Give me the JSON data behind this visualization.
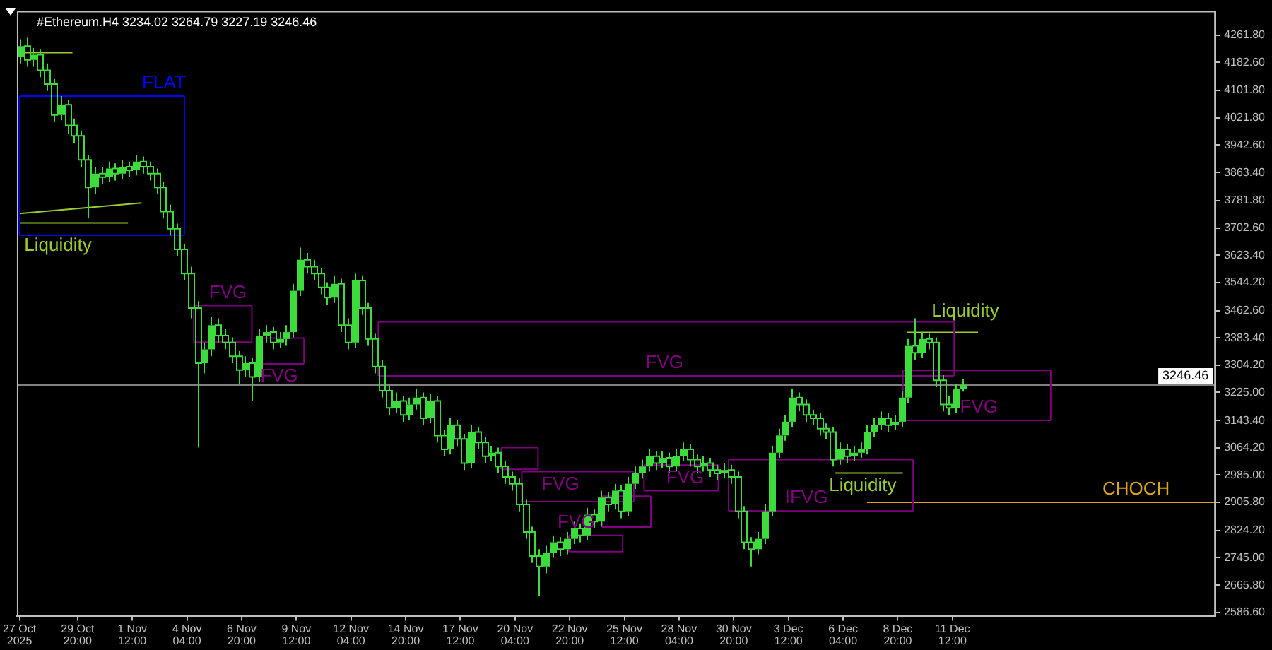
{
  "chart_data": {
    "type": "candlestick",
    "title": "#Ethereum.H4 3234.02 3264.79 3227.19 3246.46",
    "color": "#3ddc3d",
    "x": [
      "2025-10-27T00:00",
      "2025-10-27T08:00",
      "2025-10-27T16:00",
      "2025-10-28T00:00",
      "2025-10-28T08:00",
      "2025-10-28T16:00",
      "2025-10-29T00:00",
      "2025-10-29T08:00",
      "2025-10-29T16:00",
      "2025-10-30T00:00",
      "2025-10-30T08:00",
      "2025-10-30T16:00",
      "2025-10-31T00:00",
      "2025-10-31T08:00",
      "2025-10-31T16:00",
      "2025-11-01T00:00",
      "2025-11-01T08:00",
      "2025-11-01T16:00",
      "2025-11-02T00:00",
      "2025-11-02T08:00",
      "2025-11-02T16:00",
      "2025-11-03T00:00",
      "2025-11-03T08:00",
      "2025-11-03T16:00",
      "2025-11-04T00:00",
      "2025-11-04T08:00",
      "2025-11-04T16:00",
      "2025-11-05T00:00",
      "2025-11-05T08:00",
      "2025-11-05T16:00",
      "2025-11-06T00:00",
      "2025-11-06T08:00",
      "2025-11-06T16:00",
      "2025-11-07T00:00",
      "2025-11-07T08:00",
      "2025-11-07T16:00",
      "2025-11-08T00:00",
      "2025-11-08T08:00",
      "2025-11-08T16:00",
      "2025-11-09T00:00",
      "2025-11-09T08:00",
      "2025-11-09T16:00",
      "2025-11-10T00:00",
      "2025-11-10T08:00",
      "2025-11-10T16:00",
      "2025-11-11T00:00",
      "2025-11-11T08:00",
      "2025-11-11T16:00",
      "2025-11-12T00:00",
      "2025-11-12T08:00",
      "2025-11-12T16:00",
      "2025-11-13T00:00",
      "2025-11-13T08:00",
      "2025-11-13T16:00",
      "2025-11-14T00:00",
      "2025-11-14T08:00",
      "2025-11-14T16:00",
      "2025-11-15T00:00",
      "2025-11-15T08:00",
      "2025-11-15T16:00",
      "2025-11-16T00:00",
      "2025-11-16T08:00",
      "2025-11-16T16:00",
      "2025-11-17T00:00",
      "2025-11-17T08:00",
      "2025-11-17T16:00",
      "2025-11-18T00:00",
      "2025-11-18T08:00",
      "2025-11-18T16:00",
      "2025-11-19T00:00",
      "2025-11-19T08:00",
      "2025-11-19T16:00",
      "2025-11-20T00:00",
      "2025-11-20T08:00",
      "2025-11-20T16:00",
      "2025-11-21T00:00",
      "2025-11-21T08:00",
      "2025-11-21T16:00",
      "2025-11-22T00:00",
      "2025-11-22T08:00",
      "2025-11-22T16:00",
      "2025-11-23T00:00",
      "2025-11-23T08:00",
      "2025-11-23T16:00",
      "2025-11-24T00:00",
      "2025-11-24T08:00",
      "2025-11-24T16:00",
      "2025-11-25T00:00",
      "2025-11-25T08:00",
      "2025-11-25T16:00",
      "2025-11-26T00:00",
      "2025-11-26T08:00",
      "2025-11-26T16:00",
      "2025-11-27T00:00",
      "2025-11-27T08:00",
      "2025-11-27T16:00",
      "2025-11-28T00:00",
      "2025-11-28T08:00",
      "2025-11-28T16:00",
      "2025-11-29T00:00",
      "2025-11-29T08:00",
      "2025-11-29T16:00",
      "2025-11-30T00:00",
      "2025-11-30T08:00",
      "2025-11-30T16:00",
      "2025-12-01T00:00",
      "2025-12-01T08:00",
      "2025-12-01T16:00",
      "2025-12-02T00:00",
      "2025-12-02T08:00",
      "2025-12-02T16:00",
      "2025-12-03T00:00",
      "2025-12-03T08:00",
      "2025-12-03T16:00",
      "2025-12-04T00:00",
      "2025-12-04T08:00",
      "2025-12-04T16:00",
      "2025-12-05T00:00",
      "2025-12-05T08:00",
      "2025-12-05T16:00",
      "2025-12-06T00:00",
      "2025-12-06T08:00",
      "2025-12-06T16:00",
      "2025-12-07T00:00",
      "2025-12-07T08:00",
      "2025-12-07T16:00",
      "2025-12-08T00:00",
      "2025-12-08T08:00",
      "2025-12-08T16:00",
      "2025-12-09T00:00",
      "2025-12-09T08:00",
      "2025-12-09T16:00",
      "2025-12-10T00:00",
      "2025-12-10T08:00",
      "2025-12-10T16:00",
      "2025-12-11T00:00",
      "2025-12-11T08:00",
      "2025-12-11T16:00",
      "2025-12-12T00:00"
    ],
    "ohlc": [
      [
        4200,
        4250,
        4180,
        4230
      ],
      [
        4230,
        4255,
        4170,
        4190
      ],
      [
        4190,
        4225,
        4170,
        4205
      ],
      [
        4205,
        4220,
        4140,
        4160
      ],
      [
        4160,
        4180,
        4100,
        4120
      ],
      [
        4120,
        4135,
        4010,
        4030
      ],
      [
        4030,
        4085,
        4015,
        4060
      ],
      [
        4060,
        4075,
        3975,
        4000
      ],
      [
        4000,
        4020,
        3950,
        3970
      ],
      [
        3970,
        3985,
        3880,
        3900
      ],
      [
        3900,
        3915,
        3730,
        3820
      ],
      [
        3820,
        3880,
        3800,
        3860
      ],
      [
        3860,
        3880,
        3830,
        3850
      ],
      [
        3850,
        3895,
        3835,
        3875
      ],
      [
        3875,
        3890,
        3840,
        3860
      ],
      [
        3860,
        3900,
        3845,
        3880
      ],
      [
        3880,
        3895,
        3850,
        3870
      ],
      [
        3870,
        3915,
        3855,
        3895
      ],
      [
        3895,
        3910,
        3860,
        3880
      ],
      [
        3880,
        3895,
        3840,
        3860
      ],
      [
        3860,
        3875,
        3800,
        3820
      ],
      [
        3820,
        3835,
        3730,
        3750
      ],
      [
        3750,
        3770,
        3680,
        3700
      ],
      [
        3700,
        3715,
        3620,
        3640
      ],
      [
        3640,
        3655,
        3550,
        3570
      ],
      [
        3570,
        3590,
        3440,
        3470
      ],
      [
        3470,
        3490,
        3065,
        3310
      ],
      [
        3310,
        3370,
        3280,
        3350
      ],
      [
        3350,
        3445,
        3330,
        3420
      ],
      [
        3420,
        3440,
        3370,
        3390
      ],
      [
        3390,
        3410,
        3350,
        3370
      ],
      [
        3370,
        3385,
        3310,
        3330
      ],
      [
        3330,
        3345,
        3250,
        3290
      ],
      [
        3290,
        3330,
        3270,
        3310
      ],
      [
        3310,
        3325,
        3200,
        3270
      ],
      [
        3270,
        3410,
        3255,
        3390
      ],
      [
        3390,
        3420,
        3370,
        3400
      ],
      [
        3400,
        3415,
        3350,
        3370
      ],
      [
        3370,
        3400,
        3355,
        3380
      ],
      [
        3380,
        3420,
        3360,
        3400
      ],
      [
        3400,
        3540,
        3385,
        3520
      ],
      [
        3520,
        3645,
        3505,
        3610
      ],
      [
        3610,
        3630,
        3570,
        3590
      ],
      [
        3590,
        3610,
        3550,
        3570
      ],
      [
        3570,
        3585,
        3510,
        3530
      ],
      [
        3530,
        3545,
        3480,
        3500
      ],
      [
        3500,
        3565,
        3485,
        3540
      ],
      [
        3540,
        3555,
        3400,
        3420
      ],
      [
        3420,
        3440,
        3350,
        3370
      ],
      [
        3370,
        3570,
        3355,
        3550
      ],
      [
        3550,
        3565,
        3450,
        3470
      ],
      [
        3470,
        3485,
        3360,
        3380
      ],
      [
        3380,
        3395,
        3280,
        3300
      ],
      [
        3300,
        3320,
        3210,
        3230
      ],
      [
        3230,
        3245,
        3160,
        3180
      ],
      [
        3180,
        3225,
        3165,
        3200
      ],
      [
        3200,
        3215,
        3140,
        3160
      ],
      [
        3160,
        3210,
        3145,
        3190
      ],
      [
        3190,
        3235,
        3175,
        3210
      ],
      [
        3210,
        3225,
        3130,
        3150
      ],
      [
        3150,
        3220,
        3135,
        3200
      ],
      [
        3200,
        3215,
        3080,
        3100
      ],
      [
        3100,
        3115,
        3040,
        3060
      ],
      [
        3060,
        3150,
        3045,
        3130
      ],
      [
        3130,
        3145,
        3070,
        3090
      ],
      [
        3090,
        3105,
        3000,
        3020
      ],
      [
        3020,
        3130,
        3005,
        3110
      ],
      [
        3110,
        3125,
        3060,
        3080
      ],
      [
        3080,
        3095,
        3020,
        3040
      ],
      [
        3040,
        3070,
        3025,
        3050
      ],
      [
        3050,
        3065,
        2990,
        3010
      ],
      [
        3010,
        3025,
        2960,
        2980
      ],
      [
        2980,
        2995,
        2940,
        2960
      ],
      [
        2960,
        2975,
        2880,
        2900
      ],
      [
        2900,
        2915,
        2800,
        2820
      ],
      [
        2820,
        2835,
        2730,
        2750
      ],
      [
        2750,
        2770,
        2634,
        2720
      ],
      [
        2720,
        2780,
        2700,
        2760
      ],
      [
        2760,
        2810,
        2745,
        2790
      ],
      [
        2790,
        2805,
        2750,
        2770
      ],
      [
        2770,
        2820,
        2755,
        2800
      ],
      [
        2800,
        2850,
        2785,
        2830
      ],
      [
        2830,
        2845,
        2790,
        2810
      ],
      [
        2810,
        2890,
        2795,
        2870
      ],
      [
        2870,
        2885,
        2830,
        2850
      ],
      [
        2850,
        2940,
        2835,
        2920
      ],
      [
        2920,
        2935,
        2880,
        2900
      ],
      [
        2900,
        2960,
        2885,
        2940
      ],
      [
        2940,
        2955,
        2860,
        2880
      ],
      [
        2880,
        2980,
        2865,
        2960
      ],
      [
        2960,
        3010,
        2945,
        2990
      ],
      [
        2990,
        3030,
        2975,
        3010
      ],
      [
        3010,
        3060,
        2995,
        3040
      ],
      [
        3040,
        3055,
        3000,
        3020
      ],
      [
        3020,
        3055,
        3005,
        3035
      ],
      [
        3035,
        3050,
        2990,
        3010
      ],
      [
        3010,
        3060,
        2995,
        3040
      ],
      [
        3040,
        3080,
        3025,
        3060
      ],
      [
        3060,
        3075,
        3010,
        3030
      ],
      [
        3030,
        3045,
        2990,
        3010
      ],
      [
        3010,
        3040,
        2995,
        3020
      ],
      [
        3020,
        3035,
        2980,
        3000
      ],
      [
        3000,
        3015,
        2970,
        2990
      ],
      [
        2990,
        3020,
        2975,
        3000
      ],
      [
        3000,
        3015,
        2960,
        2980
      ],
      [
        2980,
        2995,
        2860,
        2880
      ],
      [
        2880,
        2895,
        2770,
        2790
      ],
      [
        2790,
        2805,
        2720,
        2770
      ],
      [
        2770,
        2820,
        2755,
        2800
      ],
      [
        2800,
        2900,
        2785,
        2880
      ],
      [
        2880,
        3070,
        2865,
        3050
      ],
      [
        3050,
        3120,
        3035,
        3100
      ],
      [
        3100,
        3160,
        3085,
        3140
      ],
      [
        3140,
        3235,
        3125,
        3210
      ],
      [
        3210,
        3225,
        3170,
        3190
      ],
      [
        3190,
        3205,
        3140,
        3160
      ],
      [
        3160,
        3175,
        3130,
        3150
      ],
      [
        3150,
        3165,
        3100,
        3120
      ],
      [
        3120,
        3135,
        3090,
        3110
      ],
      [
        3110,
        3125,
        3010,
        3030
      ],
      [
        3030,
        3080,
        3015,
        3060
      ],
      [
        3060,
        3075,
        3020,
        3040
      ],
      [
        3040,
        3070,
        3025,
        3050
      ],
      [
        3050,
        3080,
        3035,
        3060
      ],
      [
        3060,
        3130,
        3045,
        3110
      ],
      [
        3110,
        3150,
        3095,
        3130
      ],
      [
        3130,
        3170,
        3115,
        3150
      ],
      [
        3150,
        3165,
        3110,
        3130
      ],
      [
        3130,
        3160,
        3115,
        3140
      ],
      [
        3140,
        3230,
        3125,
        3210
      ],
      [
        3210,
        3380,
        3195,
        3360
      ],
      [
        3360,
        3440,
        3320,
        3340
      ],
      [
        3340,
        3400,
        3325,
        3380
      ],
      [
        3380,
        3395,
        3350,
        3370
      ],
      [
        3370,
        3385,
        3240,
        3260
      ],
      [
        3260,
        3275,
        3170,
        3190
      ],
      [
        3190,
        3215,
        3160,
        3180
      ],
      [
        3180,
        3250,
        3165,
        3234.02
      ],
      [
        3234.02,
        3264.79,
        3227.19,
        3246.46
      ]
    ],
    "series": [
      {
        "type": "line",
        "color": "#0000ff",
        "x": [
          "2025-10-27T00:00",
          "2025-11-04T01:00"
        ],
        "values": [
          4085,
          4085
        ]
      },
      {
        "type": "line",
        "color": "#0000ff",
        "x": [
          "2025-10-27T00:00",
          "2025-11-04T01:00"
        ],
        "values": [
          3681,
          3681
        ]
      },
      {
        "type": "line",
        "color": "#0000ff",
        "x": [
          "2025-10-27T00:00",
          "2025-10-27T00:00"
        ],
        "values": [
          3681,
          4085
        ]
      },
      {
        "type": "line",
        "color": "#0000ff",
        "x": [
          "2025-11-04T01:00",
          "2025-11-04T01:00"
        ],
        "values": [
          3681,
          4085
        ]
      },
      {
        "type": "line",
        "color": "#800080",
        "x": [
          "2025-11-04T12:00",
          "2025-11-07T08:00"
        ],
        "values": [
          3477,
          3477
        ]
      },
      {
        "type": "line",
        "color": "#800080",
        "x": [
          "2025-11-04T12:00",
          "2025-11-07T08:00"
        ],
        "values": [
          3371,
          3371
        ]
      },
      {
        "type": "line",
        "color": "#800080",
        "x": [
          "2025-11-04T12:00",
          "2025-11-04T12:00"
        ],
        "values": [
          3371,
          3477
        ]
      },
      {
        "type": "line",
        "color": "#800080",
        "x": [
          "2025-11-07T08:00",
          "2025-11-07T08:00"
        ],
        "values": [
          3371,
          3477
        ]
      },
      {
        "type": "line",
        "color": "#800080",
        "x": [
          "2025-11-07T13:00",
          "2025-11-09T21:00"
        ],
        "values": [
          3383,
          3383
        ]
      },
      {
        "type": "line",
        "color": "#800080",
        "x": [
          "2025-11-07T13:00",
          "2025-11-09T21:00"
        ],
        "values": [
          3308,
          3308
        ]
      },
      {
        "type": "line",
        "color": "#800080",
        "x": [
          "2025-11-07T13:00",
          "2025-11-07T13:00"
        ],
        "values": [
          3308,
          3383
        ]
      },
      {
        "type": "line",
        "color": "#800080",
        "x": [
          "2025-11-09T21:00",
          "2025-11-09T21:00"
        ],
        "values": [
          3308,
          3383
        ]
      },
      {
        "type": "line",
        "color": "#800080",
        "x": [
          "2025-11-13T12:00",
          "2025-12-11T14:00"
        ],
        "values": [
          3430,
          3430
        ]
      },
      {
        "type": "line",
        "color": "#800080",
        "x": [
          "2025-11-13T12:00",
          "2025-12-11T14:00"
        ],
        "values": [
          3273,
          3273
        ]
      },
      {
        "type": "line",
        "color": "#800080",
        "x": [
          "2025-11-13T12:00",
          "2025-11-13T12:00"
        ],
        "values": [
          3273,
          3430
        ]
      },
      {
        "type": "line",
        "color": "#800080",
        "x": [
          "2025-12-11T14:00",
          "2025-12-11T14:00"
        ],
        "values": [
          3273,
          3430
        ]
      },
      {
        "type": "line",
        "color": "#800080",
        "x": [
          "2025-11-19T12:00",
          "2025-11-21T07:00"
        ],
        "values": [
          3065,
          3065
        ]
      },
      {
        "type": "line",
        "color": "#800080",
        "x": [
          "2025-11-19T12:00",
          "2025-11-21T07:00"
        ],
        "values": [
          3002,
          3002
        ]
      },
      {
        "type": "line",
        "color": "#800080",
        "x": [
          "2025-11-19T12:00",
          "2025-11-19T12:00"
        ],
        "values": [
          3002,
          3065
        ]
      },
      {
        "type": "line",
        "color": "#800080",
        "x": [
          "2025-11-21T07:00",
          "2025-11-21T07:00"
        ],
        "values": [
          3002,
          3065
        ]
      },
      {
        "type": "line",
        "color": "#800080",
        "x": [
          "2025-11-20T12:00",
          "2025-11-25T23:00"
        ],
        "values": [
          2995,
          2995
        ]
      },
      {
        "type": "line",
        "color": "#800080",
        "x": [
          "2025-11-20T12:00",
          "2025-11-25T23:00"
        ],
        "values": [
          2908,
          2908
        ]
      },
      {
        "type": "line",
        "color": "#800080",
        "x": [
          "2025-11-20T12:00",
          "2025-11-20T12:00"
        ],
        "values": [
          2908,
          2995
        ]
      },
      {
        "type": "line",
        "color": "#800080",
        "x": [
          "2025-11-25T23:00",
          "2025-11-25T23:00"
        ],
        "values": [
          2908,
          2995
        ]
      },
      {
        "type": "line",
        "color": "#800080",
        "x": [
          "2025-11-24T10:00",
          "2025-11-26T19:00"
        ],
        "values": [
          2924,
          2924
        ]
      },
      {
        "type": "line",
        "color": "#800080",
        "x": [
          "2025-11-24T10:00",
          "2025-11-26T19:00"
        ],
        "values": [
          2834,
          2834
        ]
      },
      {
        "type": "line",
        "color": "#800080",
        "x": [
          "2025-11-24T10:00",
          "2025-11-24T10:00"
        ],
        "values": [
          2834,
          2924
        ]
      },
      {
        "type": "line",
        "color": "#800080",
        "x": [
          "2025-11-26T19:00",
          "2025-11-26T19:00"
        ],
        "values": [
          2834,
          2924
        ]
      },
      {
        "type": "line",
        "color": "#800080",
        "x": [
          "2025-11-22T19:00",
          "2025-11-25T10:00"
        ],
        "values": [
          2810,
          2810
        ]
      },
      {
        "type": "line",
        "color": "#800080",
        "x": [
          "2025-11-22T19:00",
          "2025-11-25T10:00"
        ],
        "values": [
          2763,
          2763
        ]
      },
      {
        "type": "line",
        "color": "#800080",
        "x": [
          "2025-11-22T19:00",
          "2025-11-22T19:00"
        ],
        "values": [
          2763,
          2810
        ]
      },
      {
        "type": "line",
        "color": "#800080",
        "x": [
          "2025-11-25T10:00",
          "2025-11-25T10:00"
        ],
        "values": [
          2763,
          2810
        ]
      },
      {
        "type": "line",
        "color": "#800080",
        "x": [
          "2025-11-26T11:00",
          "2025-11-30T02:00"
        ],
        "values": [
          3014,
          3014
        ]
      },
      {
        "type": "line",
        "color": "#800080",
        "x": [
          "2025-11-26T11:00",
          "2025-11-30T02:00"
        ],
        "values": [
          2940,
          2940
        ]
      },
      {
        "type": "line",
        "color": "#800080",
        "x": [
          "2025-11-26T11:00",
          "2025-11-26T11:00"
        ],
        "values": [
          2940,
          3014
        ]
      },
      {
        "type": "line",
        "color": "#800080",
        "x": [
          "2025-11-30T02:00",
          "2025-11-30T02:00"
        ],
        "values": [
          2940,
          3014
        ]
      },
      {
        "type": "line",
        "color": "#800080",
        "x": [
          "2025-11-30T14:00",
          "2025-12-09T14:00"
        ],
        "values": [
          3030,
          3030
        ]
      },
      {
        "type": "line",
        "color": "#800080",
        "x": [
          "2025-11-30T14:00",
          "2025-12-09T14:00"
        ],
        "values": [
          2881,
          2881
        ]
      },
      {
        "type": "line",
        "color": "#800080",
        "x": [
          "2025-11-30T14:00",
          "2025-11-30T14:00"
        ],
        "values": [
          2881,
          3030
        ]
      },
      {
        "type": "line",
        "color": "#800080",
        "x": [
          "2025-12-09T14:00",
          "2025-12-09T14:00"
        ],
        "values": [
          2881,
          3030
        ]
      },
      {
        "type": "line",
        "color": "#800080",
        "x": [
          "2025-12-09T02:00",
          "2025-12-16T07:00"
        ],
        "values": [
          3289,
          3289
        ]
      },
      {
        "type": "line",
        "color": "#800080",
        "x": [
          "2025-12-09T02:00",
          "2025-12-16T07:00"
        ],
        "values": [
          3144,
          3144
        ]
      },
      {
        "type": "line",
        "color": "#800080",
        "x": [
          "2025-12-09T02:00",
          "2025-12-09T02:00"
        ],
        "values": [
          3144,
          3289
        ]
      },
      {
        "type": "line",
        "color": "#800080",
        "x": [
          "2025-12-16T07:00",
          "2025-12-16T07:00"
        ],
        "values": [
          3144,
          3289
        ]
      },
      {
        "type": "line",
        "color": "#9acd32",
        "x": [
          "2025-10-27T06:00",
          "2025-10-29T14:00"
        ],
        "values": [
          4211,
          4211
        ]
      },
      {
        "type": "line",
        "color": "#9acd32",
        "x": [
          "2025-10-27T00:00",
          "2025-11-01T23:00"
        ],
        "values": [
          3744,
          3775
        ]
      },
      {
        "type": "line",
        "color": "#9acd32",
        "x": [
          "2025-10-27T00:00",
          "2025-11-01T07:00"
        ],
        "values": [
          3717,
          3717
        ]
      },
      {
        "type": "line",
        "color": "#9acd32",
        "x": [
          "2025-12-05T19:00",
          "2025-12-09T02:00"
        ],
        "values": [
          2991,
          2991
        ]
      },
      {
        "type": "line",
        "color": "#9acd32",
        "x": [
          "2025-12-09T07:00",
          "2025-12-12T18:00"
        ],
        "values": [
          3399,
          3399
        ]
      },
      {
        "type": "line",
        "color": "#daa520",
        "x": [
          "2025-12-07T08:00",
          "2025-12-24T08:00"
        ],
        "values": [
          2905.8,
          2905.8
        ]
      }
    ],
    "annotations": [
      {
        "text": "FLAT",
        "x": "2025-11-03T01:00",
        "y": 4085
      },
      {
        "text": "Liquidity",
        "x": "2025-10-28T21:00",
        "y": 3717
      },
      {
        "text": "FVG",
        "x": "2025-11-06T04:00",
        "y": 3477
      },
      {
        "text": "FVG",
        "x": "2025-11-08T16:00",
        "y": 3308
      },
      {
        "text": "FVG",
        "x": "2025-11-27T11:00",
        "y": 3273
      },
      {
        "text": "FVG",
        "x": "2025-11-22T09:00",
        "y": 2995
      },
      {
        "text": "FVG",
        "x": "2025-11-23T04:00",
        "y": 2810
      },
      {
        "text": "FVG",
        "x": "2025-11-28T11:00",
        "y": 2940
      },
      {
        "text": "IFVG",
        "x": "2025-12-04T09:00",
        "y": 2881
      },
      {
        "text": "Liquidity",
        "x": "2025-12-07T03:00",
        "y": 2991
      },
      {
        "text": "Liquidity",
        "x": "2025-12-12T03:00",
        "y": 3399
      },
      {
        "text": "FVG",
        "x": "2025-12-12T19:00",
        "y": 3144
      },
      {
        "text": "CHOCH",
        "x": "2025-12-20T11:00",
        "y": 2905.8
      }
    ],
    "ref_lines": [
      {
        "axis": "y",
        "value": 3246.46,
        "label": "3246.46",
        "color": "#808080"
      }
    ],
    "xlim": [
      "2025-10-26T21:00",
      "2025-12-24T08:00"
    ],
    "xticks": [
      {
        "value": "2025-10-27T00:00",
        "label": "27 Oct 2025"
      },
      {
        "value": "2025-10-29T20:00",
        "label": "29 Oct 20:00"
      },
      {
        "value": "2025-11-01T12:00",
        "label": "1 Nov 12:00"
      },
      {
        "value": "2025-11-04T04:00",
        "label": "4 Nov 04:00"
      },
      {
        "value": "2025-11-06T20:00",
        "label": "6 Nov 20:00"
      },
      {
        "value": "2025-11-09T12:00",
        "label": "9 Nov 12:00"
      },
      {
        "value": "2025-11-12T04:00",
        "label": "12 Nov 04:00"
      },
      {
        "value": "2025-11-14T20:00",
        "label": "14 Nov 20:00"
      },
      {
        "value": "2025-11-17T12:00",
        "label": "17 Nov 12:00"
      },
      {
        "value": "2025-11-20T04:00",
        "label": "20 Nov 04:00"
      },
      {
        "value": "2025-11-22T20:00",
        "label": "22 Nov 20:00"
      },
      {
        "value": "2025-11-25T12:00",
        "label": "25 Nov 12:00"
      },
      {
        "value": "2025-11-28T04:00",
        "label": "28 Nov 04:00"
      },
      {
        "value": "2025-11-30T20:00",
        "label": "30 Nov 20:00"
      },
      {
        "value": "2025-12-03T12:00",
        "label": "3 Dec 12:00"
      },
      {
        "value": "2025-12-06T04:00",
        "label": "6 Dec 04:00"
      },
      {
        "value": "2025-12-08T20:00",
        "label": "8 Dec 20:00"
      },
      {
        "value": "2025-12-11T12:00",
        "label": "11 Dec 12:00"
      }
    ],
    "ylim": [
      2575,
      4332
    ],
    "yticks": [
      {
        "value": 4261.8,
        "label": "4261.80"
      },
      {
        "value": 4182.6,
        "label": "4182.60"
      },
      {
        "value": 4101.8,
        "label": "4101.80"
      },
      {
        "value": 4021.8,
        "label": "4021.80"
      },
      {
        "value": 3942.6,
        "label": "3942.60"
      },
      {
        "value": 3863.4,
        "label": "3863.40"
      },
      {
        "value": 3781.8,
        "label": "3781.80"
      },
      {
        "value": 3702.6,
        "label": "3702.60"
      },
      {
        "value": 3623.4,
        "label": "3623.40"
      },
      {
        "value": 3544.2,
        "label": "3544.20"
      },
      {
        "value": 3462.6,
        "label": "3462.60"
      },
      {
        "value": 3383.4,
        "label": "3383.40"
      },
      {
        "value": 3304.2,
        "label": "3304.20"
      },
      {
        "value": 3225,
        "label": "3225.00"
      },
      {
        "value": 3143.4,
        "label": "3143.40"
      },
      {
        "value": 3064.2,
        "label": "3064.20"
      },
      {
        "value": 2985,
        "label": "2985.00"
      },
      {
        "value": 2905.8,
        "label": "2905.80"
      },
      {
        "value": 2824.2,
        "label": "2824.20"
      },
      {
        "value": 2745,
        "label": "2745.00"
      },
      {
        "value": 2665.8,
        "label": "2665.80"
      },
      {
        "value": 2586.6,
        "label": "2586.60"
      }
    ],
    "grid": false,
    "legend": false
  }
}
